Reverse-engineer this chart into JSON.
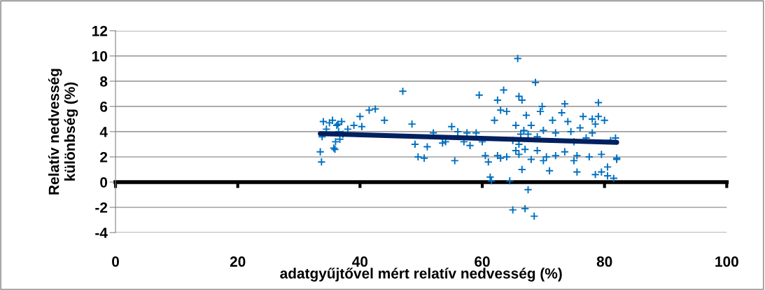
{
  "chart_data": {
    "type": "scatter",
    "ylabel": "Relatív nedvesség\nkülönbség (%)",
    "xlabel": "adatgyűjtővel mért relatív nedvesség (%)",
    "xlim": [
      0,
      100
    ],
    "xticks": [
      0,
      20,
      40,
      60,
      80,
      100
    ],
    "ylim": [
      -4,
      12
    ],
    "yticks": [
      -4,
      -2,
      0,
      2,
      4,
      6,
      8,
      10,
      12
    ],
    "grid": "y",
    "legend": false,
    "series": [
      {
        "marker": "cross",
        "color": "#0070c0",
        "x": [
          33.5,
          33.7,
          33.8,
          34,
          34.5,
          35,
          35.5,
          35.7,
          35.9,
          36,
          36.2,
          36.4,
          36.5,
          36.7,
          37,
          37.2,
          38,
          39,
          40,
          40.3,
          41.5,
          42.5,
          44,
          47,
          48.5,
          49,
          49.5,
          50.5,
          51,
          52,
          53.5,
          54,
          55,
          55.5,
          56,
          57,
          57.5,
          58,
          59,
          59.5,
          60,
          60.5,
          61,
          61.3,
          61.5,
          62,
          62.5,
          62.5,
          63,
          63,
          63.5,
          64,
          64,
          64.5,
          65,
          65,
          65.5,
          65.5,
          65.8,
          66,
          66,
          66,
          66.3,
          66.5,
          66.5,
          66.8,
          67,
          67,
          67.2,
          67.5,
          67.5,
          68,
          68,
          68.5,
          68.7,
          69,
          69,
          69.5,
          69.8,
          70,
          70,
          70.5,
          71,
          71.5,
          72,
          72,
          73,
          73.5,
          73.5,
          74,
          74.5,
          75,
          75,
          75.5,
          75.5,
          76,
          76.5,
          77,
          78,
          78,
          78.5,
          79,
          79,
          79.5,
          79.5,
          80,
          80.5,
          80.5,
          81,
          81.5,
          82,
          82,
          81.8,
          77.5,
          78.5
        ],
        "values": [
          2.4,
          1.6,
          3.6,
          4.8,
          4.2,
          4.7,
          4.9,
          2.7,
          2.6,
          3.2,
          4.5,
          4.6,
          4.0,
          3.4,
          4.8,
          3.8,
          4.2,
          4.5,
          5.2,
          4.4,
          5.7,
          5.8,
          4.9,
          7.2,
          4.6,
          3.0,
          2.0,
          1.9,
          2.8,
          3.9,
          3.1,
          3.2,
          4.4,
          1.7,
          4.0,
          3.2,
          3.9,
          2.9,
          3.9,
          6.9,
          3.2,
          2.1,
          1.6,
          0.4,
          0.1,
          4.9,
          6.5,
          2.1,
          5.7,
          1.9,
          7.3,
          2.0,
          5.6,
          0.1,
          3.3,
          -2.2,
          2.5,
          4.5,
          9.8,
          6.8,
          3.0,
          2.2,
          3.8,
          1.0,
          6.5,
          4.1,
          2.6,
          -2.1,
          5.3,
          -0.6,
          3.8,
          4.5,
          1.8,
          -2.7,
          7.9,
          3.6,
          2.5,
          5.6,
          6.0,
          1.7,
          4.1,
          2.0,
          0.9,
          4.9,
          3.9,
          2.1,
          5.5,
          6.2,
          2.4,
          4.8,
          4.0,
          3.2,
          1.7,
          2.1,
          0.8,
          4.3,
          5.2,
          3.5,
          3.9,
          5.0,
          4.6,
          6.3,
          5.2,
          0.8,
          2.2,
          4.9,
          1.2,
          0.5,
          3.3,
          0.3,
          1.8,
          1.9,
          3.5,
          2.0,
          0.6
        ]
      },
      {
        "type": "line",
        "marker": "none",
        "color": "#002060",
        "x": [
          33.5,
          82
        ],
        "values": [
          3.85,
          3.15
        ]
      }
    ]
  }
}
